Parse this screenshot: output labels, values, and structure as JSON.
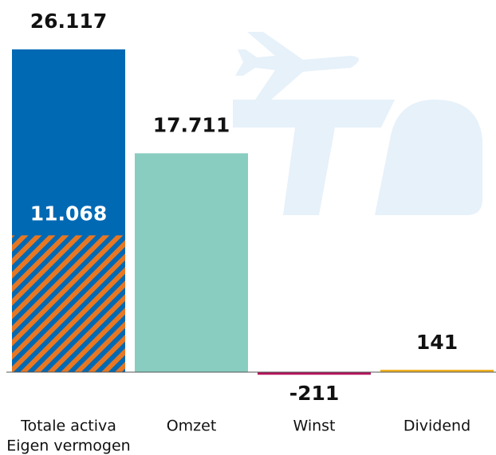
{
  "chart_data": {
    "type": "bar",
    "categories": [
      "Totale activa",
      "Omzet",
      "Winst",
      "Dividend"
    ],
    "values": [
      26117,
      17711,
      -211,
      141
    ],
    "value_labels": [
      "26.117",
      "17.711",
      "-211",
      "141"
    ],
    "colors": [
      "#0069b4",
      "#88cdc0",
      "#b5135b",
      "#f0b323"
    ],
    "highlight": {
      "name": "Eigen vermogen",
      "value": 11068,
      "value_label": "11.068",
      "color": "#e87722"
    }
  }
}
